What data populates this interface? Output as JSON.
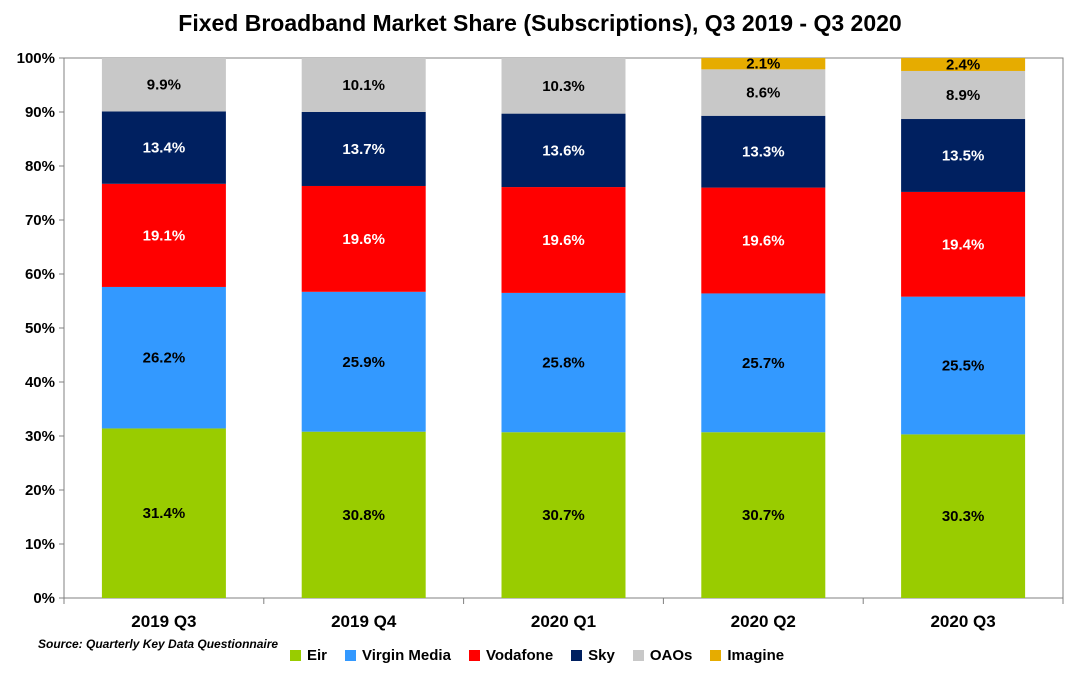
{
  "chart_data": {
    "type": "bar",
    "stacked": true,
    "title": "Fixed Broadband Market Share (Subscriptions), Q3 2019 - Q3 2020",
    "xlabel": "",
    "ylabel": "",
    "ylim": [
      0,
      100
    ],
    "yticks": [
      "0%",
      "10%",
      "20%",
      "30%",
      "40%",
      "50%",
      "60%",
      "70%",
      "80%",
      "90%",
      "100%"
    ],
    "grid": false,
    "legend": "bottom",
    "categories": [
      "2019 Q3",
      "2019 Q4",
      "2020 Q1",
      "2020 Q2",
      "2020 Q3"
    ],
    "series": [
      {
        "name": "Eir",
        "color": "#99cc00",
        "text_color": "#000000",
        "values": [
          31.4,
          30.8,
          30.7,
          30.7,
          30.3
        ],
        "labels": [
          "31.4%",
          "30.8%",
          "30.7%",
          "30.7%",
          "30.3%"
        ]
      },
      {
        "name": "Virgin Media",
        "color": "#3399ff",
        "text_color": "#000000",
        "values": [
          26.2,
          25.9,
          25.8,
          25.7,
          25.5
        ],
        "labels": [
          "26.2%",
          "25.9%",
          "25.8%",
          "25.7%",
          "25.5%"
        ]
      },
      {
        "name": "Vodafone",
        "color": "#ff0000",
        "text_color": "#ffffff",
        "values": [
          19.1,
          19.6,
          19.6,
          19.6,
          19.4
        ],
        "labels": [
          "19.1%",
          "19.6%",
          "19.6%",
          "19.6%",
          "19.4%"
        ]
      },
      {
        "name": "Sky",
        "color": "#002060",
        "text_color": "#ffffff",
        "values": [
          13.4,
          13.7,
          13.6,
          13.3,
          13.5
        ],
        "labels": [
          "13.4%",
          "13.7%",
          "13.6%",
          "13.3%",
          "13.5%"
        ]
      },
      {
        "name": "OAOs",
        "color": "#c8c8c8",
        "text_color": "#000000",
        "values": [
          9.9,
          10.1,
          10.3,
          8.6,
          8.9
        ],
        "labels": [
          "9.9%",
          "10.1%",
          "10.3%",
          "8.6%",
          "8.9%"
        ]
      },
      {
        "name": "Imagine",
        "color": "#e6ac00",
        "text_color": "#000000",
        "values": [
          0,
          0,
          0,
          2.1,
          2.4
        ],
        "labels": [
          "",
          "",
          "",
          "2.1%",
          "2.4%"
        ]
      }
    ]
  },
  "source_note": "Source: Quarterly Key Data Questionnaire"
}
